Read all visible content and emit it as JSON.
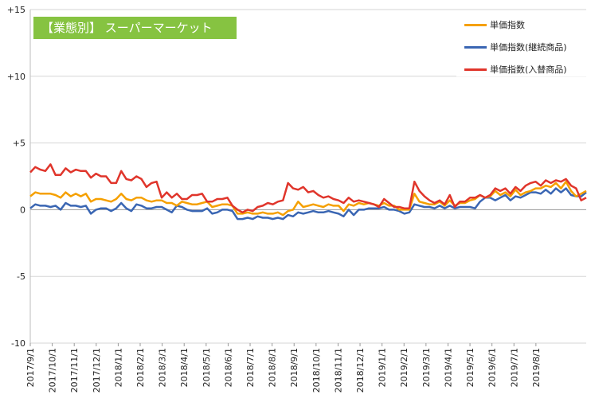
{
  "badge": {
    "text": "【業態別】 スーパーマーケット",
    "color": "#86c341"
  },
  "chart_data": {
    "type": "line",
    "title": "【業態別】 スーパーマーケット",
    "ylim": [
      -10,
      15
    ],
    "yticks": [
      15,
      10,
      5,
      0,
      -5,
      -10
    ],
    "ytick_labels": [
      "+15",
      "+10",
      "+5",
      "0",
      "-5",
      "-10"
    ],
    "grid": "horizontal",
    "legend_position": "top-right",
    "x_tick_labels": [
      "2017/9/1",
      "2017/10/1",
      "2017/11/1",
      "2017/12/1",
      "2018/1/1",
      "2018/2/1",
      "2018/3/1",
      "2018/4/1",
      "2018/5/1",
      "2018/6/1",
      "2018/7/1",
      "2018/8/1",
      "2018/9/1",
      "2018/10/1",
      "2018/11/1",
      "2018/12/1",
      "2019/1/1",
      "2019/2/1",
      "2019/3/1",
      "2019/4/1",
      "2019/5/1",
      "2019/6/1",
      "2019/7/1",
      "2019/8/1"
    ],
    "points_per_month": 4.35,
    "series": [
      {
        "name": "単価指数",
        "color": "#f5a000",
        "values": [
          1.0,
          1.3,
          1.2,
          1.2,
          1.2,
          1.1,
          0.9,
          1.3,
          1.0,
          1.2,
          1.0,
          1.2,
          0.6,
          0.8,
          0.8,
          0.7,
          0.6,
          0.8,
          1.2,
          0.8,
          0.7,
          0.9,
          0.9,
          0.7,
          0.6,
          0.7,
          0.7,
          0.5,
          0.5,
          0.3,
          0.6,
          0.5,
          0.4,
          0.4,
          0.5,
          0.6,
          0.2,
          0.3,
          0.4,
          0.4,
          0.3,
          -0.3,
          -0.3,
          -0.2,
          -0.3,
          -0.3,
          -0.2,
          -0.3,
          -0.3,
          -0.2,
          -0.4,
          -0.1,
          0.0,
          0.6,
          0.2,
          0.3,
          0.4,
          0.3,
          0.2,
          0.4,
          0.3,
          0.3,
          -0.1,
          0.4,
          0.3,
          0.5,
          0.4,
          0.5,
          0.4,
          0.3,
          0.5,
          0.3,
          0.3,
          0.0,
          0.0,
          0.0,
          1.2,
          0.6,
          0.5,
          0.4,
          0.4,
          0.6,
          0.3,
          0.7,
          0.3,
          0.5,
          0.5,
          0.7,
          0.8,
          1.1,
          0.9,
          1.0,
          1.4,
          1.1,
          1.3,
          1.0,
          1.5,
          1.1,
          1.3,
          1.4,
          1.6,
          1.6,
          1.8,
          1.7,
          2.0,
          1.6,
          2.1,
          1.4,
          1.0,
          1.2,
          1.4
        ]
      },
      {
        "name": "単価指数(継続商品)",
        "color": "#3a66b3",
        "values": [
          0.1,
          0.4,
          0.3,
          0.3,
          0.2,
          0.3,
          0.0,
          0.5,
          0.3,
          0.3,
          0.2,
          0.3,
          -0.3,
          0.0,
          0.1,
          0.1,
          -0.1,
          0.1,
          0.5,
          0.1,
          -0.1,
          0.4,
          0.3,
          0.1,
          0.1,
          0.2,
          0.2,
          0.0,
          -0.2,
          0.3,
          0.2,
          0.0,
          -0.1,
          -0.1,
          -0.1,
          0.1,
          -0.3,
          -0.2,
          0.0,
          0.0,
          -0.1,
          -0.7,
          -0.7,
          -0.6,
          -0.7,
          -0.5,
          -0.6,
          -0.6,
          -0.7,
          -0.6,
          -0.7,
          -0.4,
          -0.5,
          -0.2,
          -0.3,
          -0.2,
          -0.1,
          -0.2,
          -0.2,
          -0.1,
          -0.2,
          -0.3,
          -0.5,
          0.0,
          -0.4,
          0.0,
          0.0,
          0.1,
          0.1,
          0.1,
          0.2,
          0.0,
          0.0,
          -0.1,
          -0.3,
          -0.2,
          0.4,
          0.3,
          0.2,
          0.2,
          0.1,
          0.3,
          0.1,
          0.3,
          0.1,
          0.2,
          0.2,
          0.2,
          0.1,
          0.6,
          0.9,
          0.9,
          0.7,
          0.9,
          1.1,
          0.7,
          1.0,
          0.9,
          1.1,
          1.3,
          1.3,
          1.2,
          1.5,
          1.2,
          1.6,
          1.3,
          1.6,
          1.1,
          1.0,
          1.0,
          1.3
        ]
      },
      {
        "name": "単価指数(入替商品)",
        "color": "#e0352b",
        "values": [
          2.8,
          3.2,
          3.0,
          2.9,
          3.4,
          2.6,
          2.6,
          3.1,
          2.8,
          3.0,
          2.9,
          2.9,
          2.4,
          2.7,
          2.5,
          2.5,
          2.0,
          2.0,
          2.9,
          2.3,
          2.2,
          2.5,
          2.3,
          1.7,
          2.0,
          2.1,
          0.9,
          1.3,
          0.9,
          1.2,
          0.8,
          0.8,
          1.1,
          1.1,
          1.2,
          0.6,
          0.6,
          0.8,
          0.8,
          0.9,
          0.3,
          0.0,
          -0.2,
          0.0,
          -0.1,
          0.2,
          0.3,
          0.5,
          0.4,
          0.6,
          0.7,
          2.0,
          1.6,
          1.5,
          1.7,
          1.3,
          1.4,
          1.1,
          0.9,
          1.0,
          0.8,
          0.7,
          0.5,
          0.9,
          0.6,
          0.7,
          0.6,
          0.5,
          0.4,
          0.2,
          0.8,
          0.5,
          0.2,
          0.2,
          0.1,
          0.1,
          2.1,
          1.4,
          1.0,
          0.7,
          0.5,
          0.7,
          0.4,
          1.1,
          0.2,
          0.6,
          0.6,
          0.9,
          0.9,
          1.1,
          0.9,
          1.1,
          1.6,
          1.4,
          1.6,
          1.2,
          1.7,
          1.4,
          1.8,
          2.0,
          2.1,
          1.8,
          2.2,
          2.0,
          2.2,
          2.1,
          2.3,
          1.8,
          1.6,
          0.7,
          0.9
        ]
      }
    ]
  }
}
